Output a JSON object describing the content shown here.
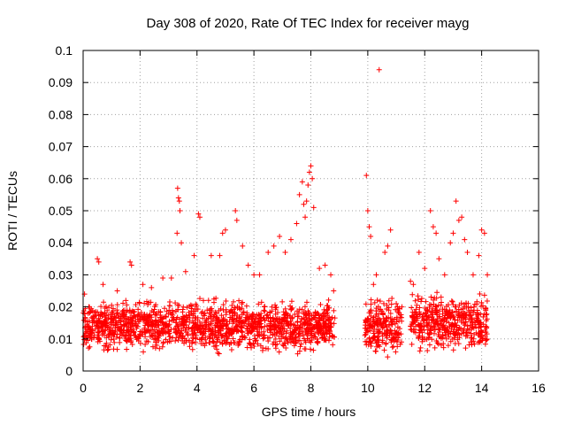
{
  "chart_data": {
    "type": "scatter",
    "title": "Day 308 of 2020, Rate Of TEC Index for receiver mayg",
    "xlabel": "GPS time / hours",
    "ylabel": "ROTI / TECUs",
    "xlim": [
      0,
      16
    ],
    "ylim": [
      0,
      0.1
    ],
    "xticks": [
      0,
      2,
      4,
      6,
      8,
      10,
      12,
      14,
      16
    ],
    "yticks": [
      0,
      0.01,
      0.02,
      0.03,
      0.04,
      0.05,
      0.06,
      0.07,
      0.08,
      0.09,
      0.1
    ],
    "xtick_labels": [
      "0",
      "2",
      "4",
      "6",
      "8",
      "10",
      "12",
      "14",
      "16"
    ],
    "ytick_labels": [
      "0",
      "0.01",
      "0.02",
      "0.03",
      "0.04",
      "0.05",
      "0.06",
      "0.07",
      "0.08",
      "0.09",
      "0.1"
    ],
    "grid": true,
    "marker": "plus",
    "color": "#ff0000",
    "series": [
      {
        "x": [
          0.05,
          0.2,
          0.5,
          0.55,
          0.7,
          1.2,
          1.5,
          1.65,
          1.7,
          2.1,
          2.4,
          2.8,
          3.1,
          3.3,
          3.32,
          3.35,
          3.38,
          3.4,
          3.45,
          3.6,
          3.9,
          4.05,
          4.1,
          4.5,
          4.8,
          4.9,
          5.0,
          5.35,
          5.4,
          5.6,
          5.8,
          6.0,
          6.2,
          6.5,
          6.7,
          6.9,
          7.1,
          7.3,
          7.5,
          7.6,
          7.7,
          7.75,
          7.8,
          7.85,
          7.9,
          7.95,
          8.0,
          8.05,
          8.1,
          8.3,
          8.5,
          8.7,
          8.8,
          9.95,
          10.0,
          10.05,
          10.1,
          10.2,
          10.3,
          10.4,
          10.6,
          10.7,
          10.8,
          11.0,
          11.1,
          11.2,
          11.5,
          11.6,
          11.8,
          12.0,
          12.2,
          12.3,
          12.4,
          12.5,
          12.7,
          12.9,
          13.0,
          13.1,
          13.2,
          13.3,
          13.4,
          13.5,
          13.7,
          13.9,
          14.0,
          14.1,
          14.2
        ],
        "y": [
          0.024,
          0.02,
          0.035,
          0.034,
          0.027,
          0.025,
          0.022,
          0.034,
          0.033,
          0.027,
          0.026,
          0.029,
          0.029,
          0.043,
          0.057,
          0.054,
          0.053,
          0.05,
          0.04,
          0.031,
          0.036,
          0.049,
          0.048,
          0.036,
          0.036,
          0.043,
          0.044,
          0.05,
          0.047,
          0.039,
          0.033,
          0.03,
          0.03,
          0.037,
          0.039,
          0.042,
          0.037,
          0.041,
          0.046,
          0.055,
          0.059,
          0.052,
          0.048,
          0.053,
          0.058,
          0.062,
          0.064,
          0.06,
          0.051,
          0.032,
          0.033,
          0.03,
          0.025,
          0.061,
          0.05,
          0.045,
          0.042,
          0.027,
          0.03,
          0.094,
          0.037,
          0.039,
          0.044,
          0.021,
          0.018,
          0.02,
          0.028,
          0.027,
          0.037,
          0.032,
          0.05,
          0.045,
          0.043,
          0.035,
          0.03,
          0.04,
          0.043,
          0.053,
          0.047,
          0.048,
          0.041,
          0.037,
          0.03,
          0.036,
          0.044,
          0.043,
          0.03
        ]
      }
    ],
    "dense_band": [
      {
        "x": [
          0.0,
          8.85
        ],
        "y": [
          0.004,
          0.024
        ]
      },
      {
        "x": [
          9.9,
          11.2
        ],
        "y": [
          0.003,
          0.025
        ]
      },
      {
        "x": [
          11.5,
          14.2
        ],
        "y": [
          0.004,
          0.026
        ]
      }
    ]
  }
}
